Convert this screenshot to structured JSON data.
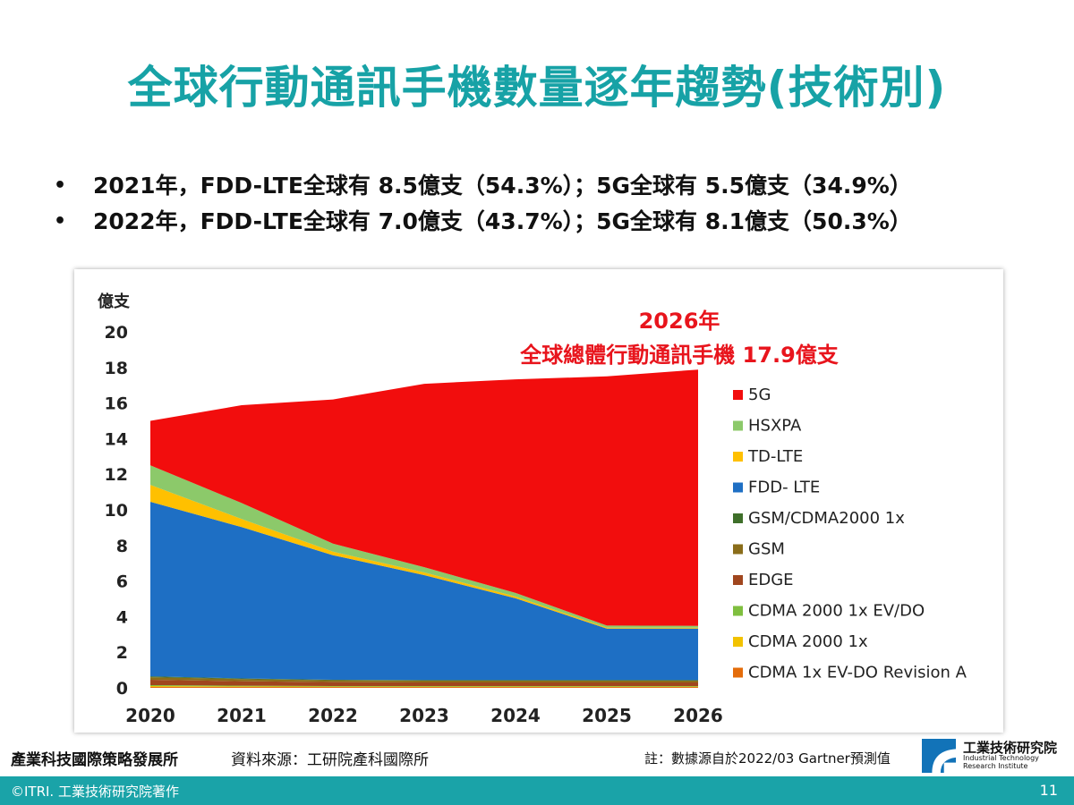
{
  "slide": {
    "title": "全球行動通訊手機數量逐年趨勢(技術別)",
    "bullets": [
      "2021年，FDD-LTE全球有 8.5億支（54.3%）；5G全球有 5.5億支（34.9%）",
      "2022年，FDD-LTE全球有 7.0億支（43.7%）；5G全球有 8.1億支（50.3%）"
    ],
    "bullet_char": "•",
    "footer": {
      "org": "產業科技國際策略發展所",
      "source": "資料來源：工研院產科國際所",
      "note": "註：數據源自於2022/03 Gartner預測值",
      "logo_cn": "工業技術研究院",
      "logo_en_1": "Industrial Technology",
      "logo_en_2": "Research Institute",
      "copyright": "©ITRI. 工業技術研究院著作",
      "page_number": "11"
    },
    "colors": {
      "title": "#17a2a6",
      "bar": "#1aa3a8",
      "annotation": "#e8141c",
      "logo": "#1273b8"
    }
  },
  "chart_data": {
    "type": "area",
    "stacked": true,
    "ylabel": "億支",
    "ylim": [
      0,
      20
    ],
    "yticks": [
      0,
      2,
      4,
      6,
      8,
      10,
      12,
      14,
      16,
      18,
      20
    ],
    "categories": [
      "2020",
      "2021",
      "2022",
      "2023",
      "2024",
      "2025",
      "2026"
    ],
    "grid": false,
    "legend_position": "right",
    "annotation": {
      "line1": "2026年",
      "line2": "全球總體行動通訊手機 17.9億支"
    },
    "series": [
      {
        "name": "CDMA 1x EV-DO Revision A",
        "color": "#e46c0a",
        "values": [
          0.05,
          0.05,
          0.05,
          0.05,
          0.05,
          0.05,
          0.05
        ]
      },
      {
        "name": "CDMA 2000 1x",
        "color": "#f2c200",
        "values": [
          0.05,
          0.03,
          0.02,
          0.02,
          0.02,
          0.02,
          0.02
        ]
      },
      {
        "name": "CDMA 2000 1x EV/DO",
        "color": "#7fbf3f",
        "values": [
          0.05,
          0.04,
          0.03,
          0.03,
          0.03,
          0.03,
          0.03
        ]
      },
      {
        "name": "EDGE",
        "color": "#a0461e",
        "values": [
          0.3,
          0.25,
          0.22,
          0.2,
          0.2,
          0.2,
          0.2
        ]
      },
      {
        "name": "GSM",
        "color": "#8a6d1a",
        "values": [
          0.15,
          0.12,
          0.1,
          0.1,
          0.1,
          0.1,
          0.1
        ]
      },
      {
        "name": "GSM/CDMA2000 1x",
        "color": "#3f6f2a",
        "values": [
          0.05,
          0.04,
          0.03,
          0.03,
          0.03,
          0.03,
          0.03
        ]
      },
      {
        "name": "FDD- LTE",
        "color": "#1e6fc4",
        "values": [
          9.8,
          8.5,
          7.0,
          5.9,
          4.6,
          2.9,
          2.9
        ]
      },
      {
        "name": "TD-LTE",
        "color": "#ffc000",
        "values": [
          0.95,
          0.45,
          0.2,
          0.15,
          0.1,
          0.05,
          0.05
        ]
      },
      {
        "name": "HSXPA",
        "color": "#8cc96a",
        "values": [
          1.1,
          0.9,
          0.45,
          0.3,
          0.2,
          0.12,
          0.1
        ]
      },
      {
        "name": "5G",
        "color": "#f20d0d",
        "values": [
          2.5,
          5.5,
          8.1,
          10.3,
          12.0,
          14.0,
          14.4
        ]
      }
    ]
  }
}
